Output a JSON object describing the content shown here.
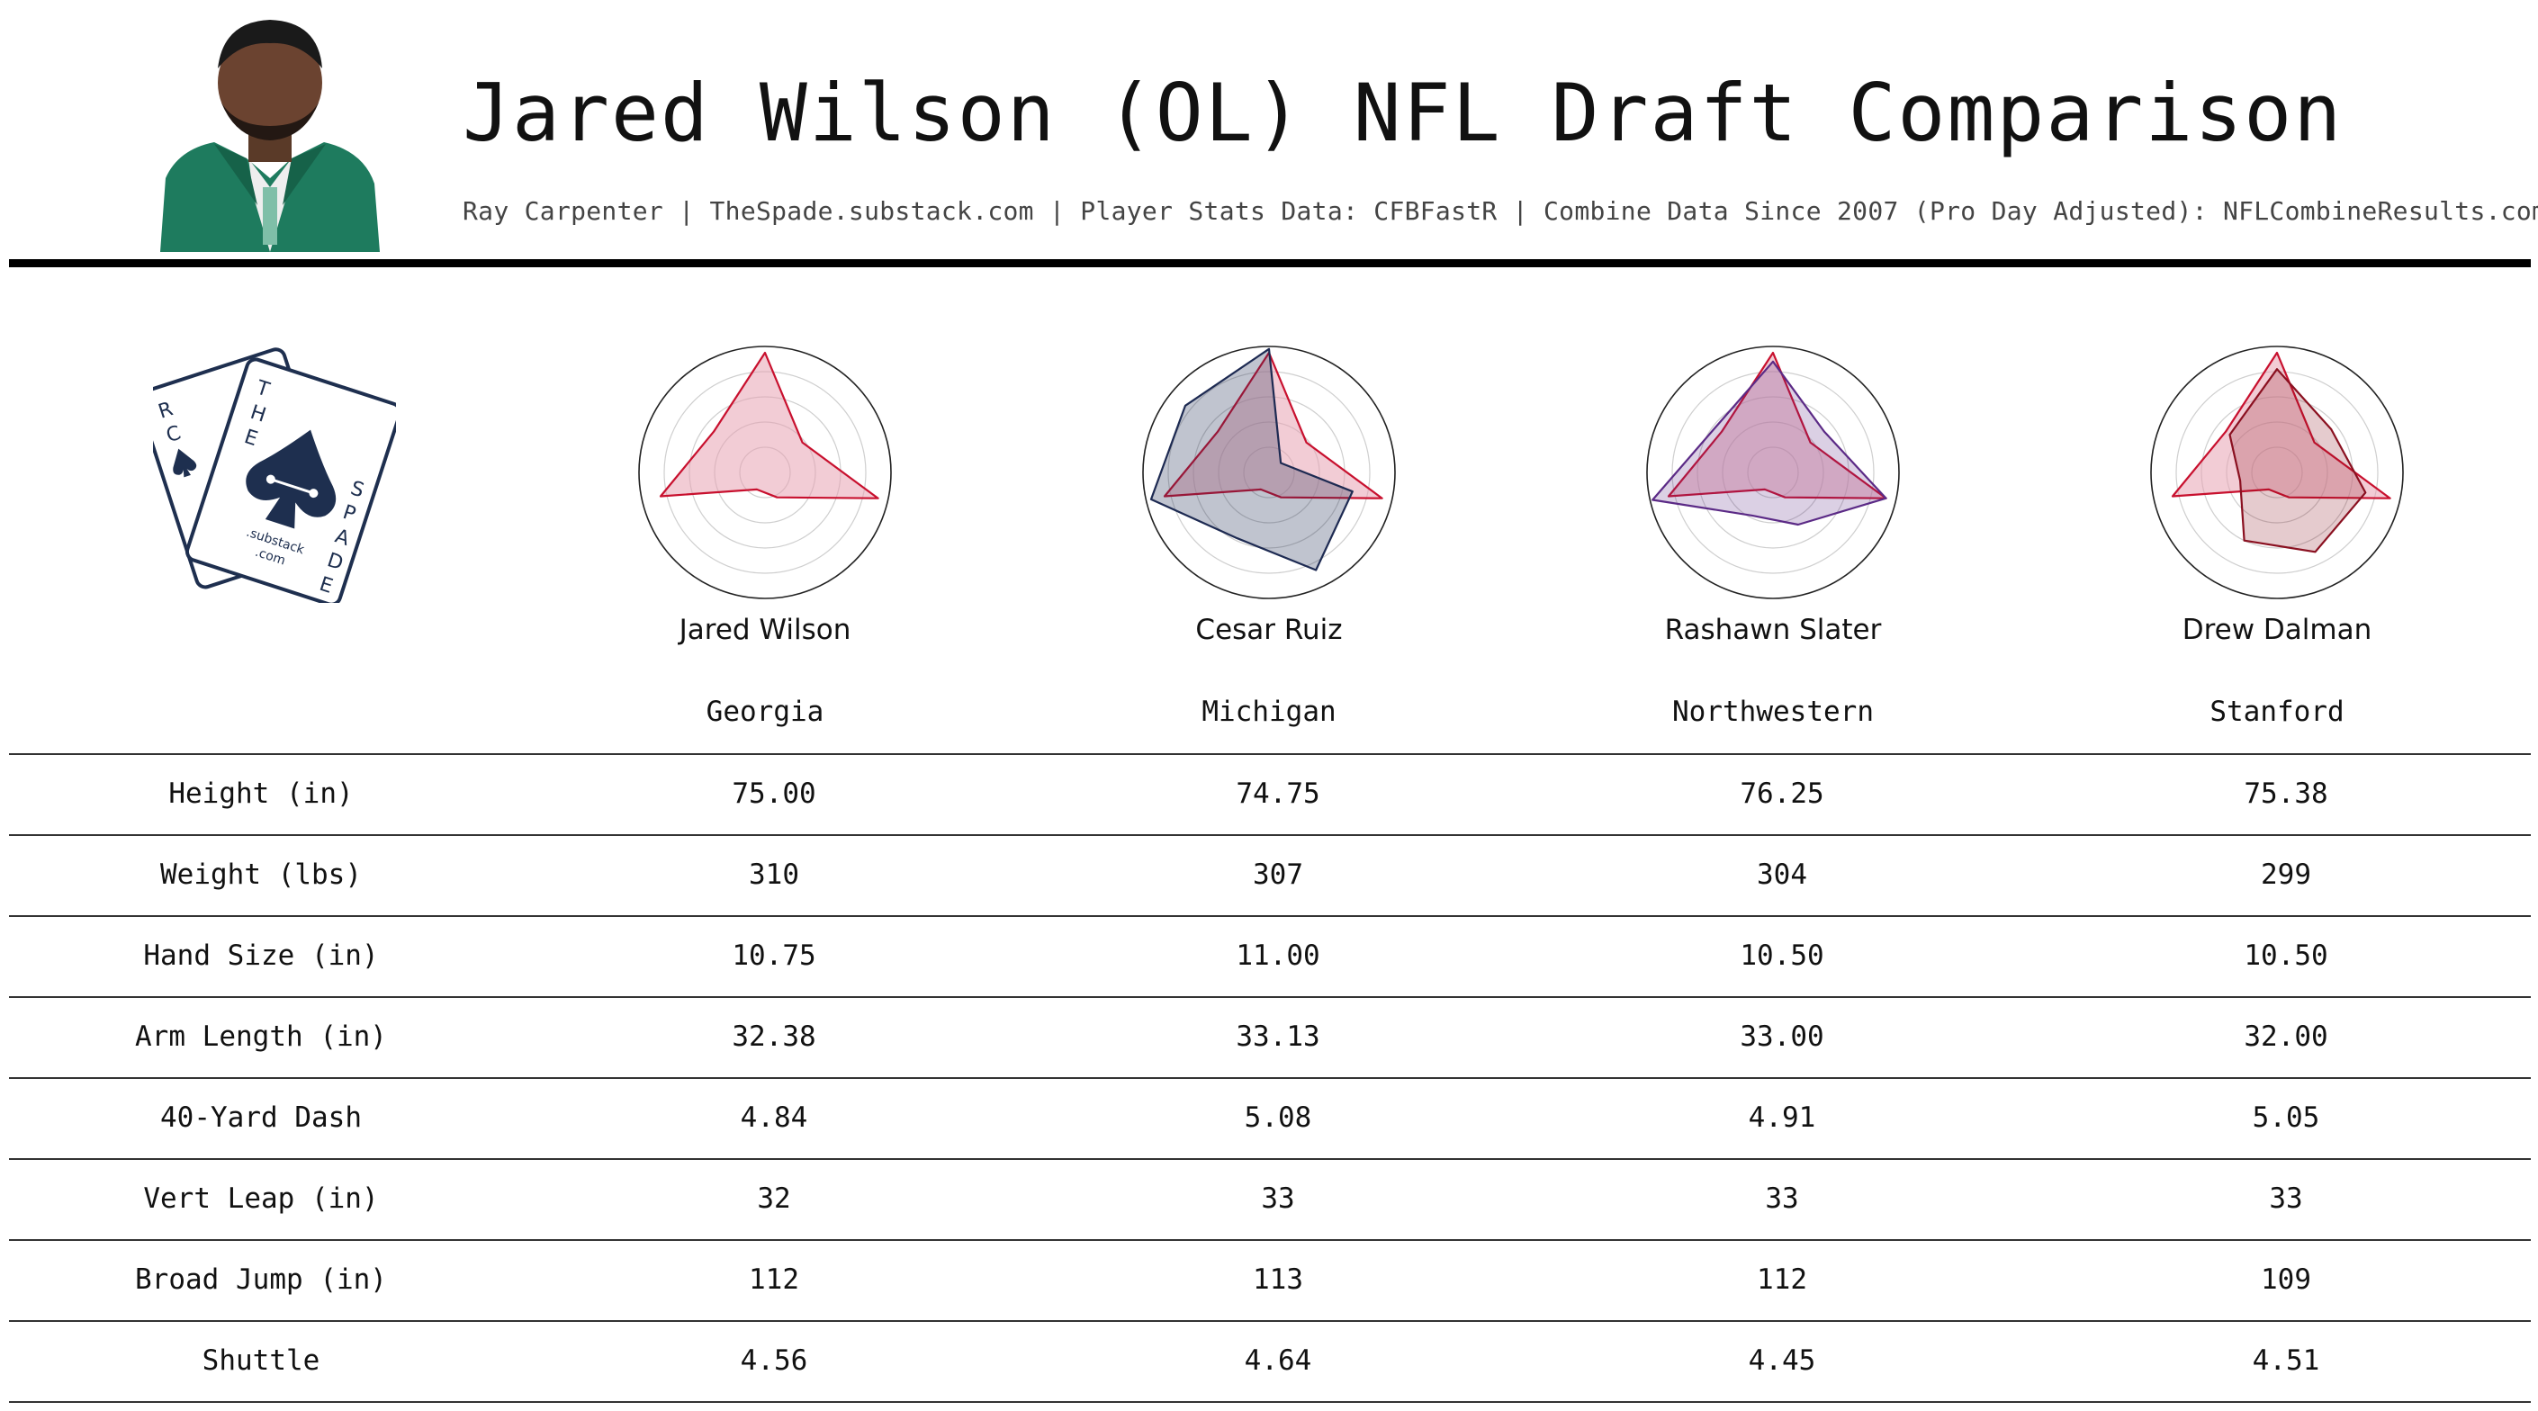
{
  "header": {
    "title": "Jared Wilson (OL) NFL Draft Comparison",
    "subtitle": "Ray Carpenter | TheSpade.substack.com | Player Stats Data: CFBFastR | Combine Data Since 2007 (Pro Day Adjusted): NFLCombineResults.com"
  },
  "logo": {
    "card_back_letters": [
      "R",
      "C"
    ],
    "word_the": [
      "T",
      "H",
      "E"
    ],
    "word_spade": [
      "S",
      "P",
      "A",
      "D",
      "E"
    ],
    "substack": ".substack",
    "com": ".com"
  },
  "colors": {
    "target": "#c8102e",
    "target_fill": "#e8a2b2",
    "comp_ruiz": "#1d2a52",
    "comp_slater": "#5b2a86",
    "comp_dalman": "#8a1020",
    "logo_navy": "#1e2f4f"
  },
  "players": [
    {
      "name": "Jared Wilson",
      "school": "Georgia"
    },
    {
      "name": "Cesar Ruiz",
      "school": "Michigan"
    },
    {
      "name": "Rashawn Slater",
      "school": "Northwestern"
    },
    {
      "name": "Drew Dalman",
      "school": "Stanford"
    }
  ],
  "table": {
    "rows": [
      {
        "label": "Height (in)",
        "values": [
          "75.00",
          "74.75",
          "76.25",
          "75.38"
        ]
      },
      {
        "label": "Weight (lbs)",
        "values": [
          "310",
          "307",
          "304",
          "299"
        ]
      },
      {
        "label": "Hand Size (in)",
        "values": [
          "10.75",
          "11.00",
          "10.50",
          "10.50"
        ]
      },
      {
        "label": "Arm Length (in)",
        "values": [
          "32.38",
          "33.13",
          "33.00",
          "32.00"
        ]
      },
      {
        "label": "40-Yard Dash",
        "values": [
          "4.84",
          "5.08",
          "4.91",
          "5.05"
        ]
      },
      {
        "label": "Vert Leap (in)",
        "values": [
          "32",
          "33",
          "33",
          "33"
        ]
      },
      {
        "label": "Broad Jump (in)",
        "values": [
          "112",
          "113",
          "112",
          "109"
        ]
      },
      {
        "label": "Shuttle",
        "values": [
          "4.56",
          "4.64",
          "4.45",
          "4.51"
        ]
      }
    ]
  },
  "chart_data": [
    {
      "type": "radar",
      "rmax": 1,
      "rings": 5,
      "series": [
        {
          "values": [
            0.95,
            0.38,
            0.92,
            0.22,
            0.15,
            0.85,
            0.52
          ]
        }
      ]
    },
    {
      "type": "radar",
      "rmax": 1,
      "rings": 5,
      "series": [
        {
          "values": [
            0.95,
            0.38,
            0.92,
            0.22,
            0.15,
            0.85,
            0.52
          ]
        },
        {
          "values": [
            0.98,
            0.12,
            0.68,
            0.86,
            0.58,
            0.96,
            0.85
          ]
        }
      ]
    },
    {
      "type": "radar",
      "rmax": 1,
      "rings": 5,
      "series": [
        {
          "values": [
            0.95,
            0.38,
            0.92,
            0.22,
            0.15,
            0.85,
            0.52
          ]
        },
        {
          "values": [
            0.88,
            0.52,
            0.92,
            0.46,
            0.38,
            0.98,
            0.58
          ]
        }
      ]
    },
    {
      "type": "radar",
      "rmax": 1,
      "rings": 5,
      "series": [
        {
          "values": [
            0.95,
            0.38,
            0.92,
            0.22,
            0.15,
            0.85,
            0.52
          ]
        },
        {
          "values": [
            0.82,
            0.55,
            0.72,
            0.7,
            0.6,
            0.3,
            0.48
          ]
        }
      ]
    }
  ]
}
